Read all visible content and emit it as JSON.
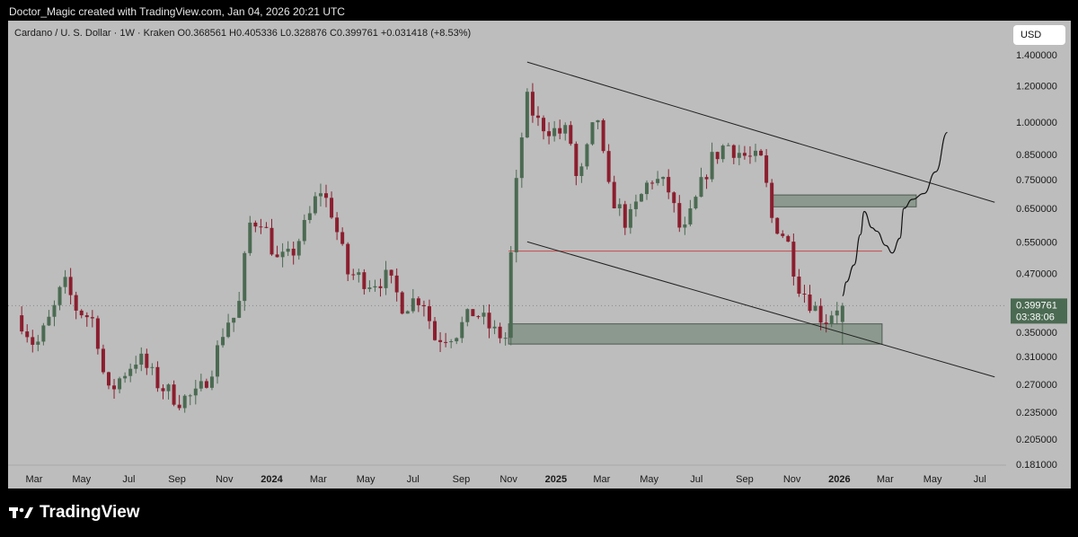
{
  "header": {
    "caption": "Doctor_Magic created with TradingView.com, Jan 04, 2026 20:21 UTC"
  },
  "legend": {
    "text": "Cardano / U. S. Dollar · 1W · Kraken  O0.368561  H0.405336  L0.328876  C0.399761  +0.031418 (+8.53%)"
  },
  "currency_button": "USD",
  "price_tag": {
    "price": "0.399761",
    "countdown": "03:38:06"
  },
  "brand": {
    "name": "TradingView"
  },
  "colors": {
    "up": "#4b6a52",
    "down": "#8b1e2e",
    "background": "#bdbdbd",
    "tag": "#4b6a52",
    "support_line": "#c84b4b",
    "zone": "#7c8e7f"
  },
  "chart_data": {
    "type": "candlestick",
    "symbol": "Cardano / U. S. Dollar",
    "interval": "1W",
    "exchange": "Kraken",
    "ohlc_last": {
      "open": 0.368561,
      "high": 0.405336,
      "low": 0.328876,
      "close": 0.399761,
      "change": 0.031418,
      "change_pct": "+8.53%"
    },
    "y_scale": "log",
    "ylim": [
      0.181,
      1.4
    ],
    "y_ticks": [
      "1.400000",
      "1.200000",
      "1.000000",
      "0.850000",
      "0.750000",
      "0.650000",
      "0.550000",
      "0.470000",
      "0.350000",
      "0.310000",
      "0.270000",
      "0.235000",
      "0.205000",
      "0.181000"
    ],
    "x_ticks": [
      {
        "label": "Mar",
        "date": "2023-03-01",
        "bold": false
      },
      {
        "label": "May",
        "date": "2023-05-01",
        "bold": false
      },
      {
        "label": "Jul",
        "date": "2023-07-01",
        "bold": false
      },
      {
        "label": "Sep",
        "date": "2023-09-01",
        "bold": false
      },
      {
        "label": "Nov",
        "date": "2023-11-01",
        "bold": false
      },
      {
        "label": "2024",
        "date": "2024-01-01",
        "bold": true
      },
      {
        "label": "Mar",
        "date": "2024-03-01",
        "bold": false
      },
      {
        "label": "May",
        "date": "2024-05-01",
        "bold": false
      },
      {
        "label": "Jul",
        "date": "2024-07-01",
        "bold": false
      },
      {
        "label": "Sep",
        "date": "2024-09-01",
        "bold": false
      },
      {
        "label": "Nov",
        "date": "2024-11-01",
        "bold": false
      },
      {
        "label": "2025",
        "date": "2025-01-01",
        "bold": true
      },
      {
        "label": "Mar",
        "date": "2025-03-01",
        "bold": false
      },
      {
        "label": "May",
        "date": "2025-05-01",
        "bold": false
      },
      {
        "label": "Jul",
        "date": "2025-07-01",
        "bold": false
      },
      {
        "label": "Sep",
        "date": "2025-09-01",
        "bold": false
      },
      {
        "label": "Nov",
        "date": "2025-11-01",
        "bold": false
      },
      {
        "label": "2026",
        "date": "2026-01-01",
        "bold": true
      },
      {
        "label": "Mar",
        "date": "2026-03-01",
        "bold": false
      },
      {
        "label": "May",
        "date": "2026-05-01",
        "bold": false
      },
      {
        "label": "Jul",
        "date": "2026-07-01",
        "bold": false
      }
    ],
    "price_path": [
      [
        "2023-02-01",
        0.385
      ],
      [
        "2023-02-20",
        0.37
      ],
      [
        "2023-03-10",
        0.325
      ],
      [
        "2023-04-01",
        0.385
      ],
      [
        "2023-04-15",
        0.45
      ],
      [
        "2023-05-01",
        0.395
      ],
      [
        "2023-05-25",
        0.37
      ],
      [
        "2023-06-10",
        0.255
      ],
      [
        "2023-07-01",
        0.285
      ],
      [
        "2023-07-20",
        0.31
      ],
      [
        "2023-08-15",
        0.27
      ],
      [
        "2023-09-10",
        0.25
      ],
      [
        "2023-10-05",
        0.255
      ],
      [
        "2023-10-25",
        0.3
      ],
      [
        "2023-11-10",
        0.37
      ],
      [
        "2023-11-25",
        0.38
      ],
      [
        "2023-12-10",
        0.6
      ],
      [
        "2023-12-25",
        0.62
      ],
      [
        "2024-01-15",
        0.5
      ],
      [
        "2024-02-01",
        0.51
      ],
      [
        "2024-02-25",
        0.62
      ],
      [
        "2024-03-10",
        0.72
      ],
      [
        "2024-03-25",
        0.64
      ],
      [
        "2024-04-15",
        0.47
      ],
      [
        "2024-05-15",
        0.45
      ],
      [
        "2024-06-05",
        0.46
      ],
      [
        "2024-06-25",
        0.4
      ],
      [
        "2024-07-20",
        0.42
      ],
      [
        "2024-08-05",
        0.34
      ],
      [
        "2024-09-01",
        0.35
      ],
      [
        "2024-09-25",
        0.39
      ],
      [
        "2024-10-20",
        0.35
      ],
      [
        "2024-11-05",
        0.34
      ],
      [
        "2024-11-12",
        0.55
      ],
      [
        "2024-11-20",
        0.8
      ],
      [
        "2024-12-01",
        1.12
      ],
      [
        "2024-12-15",
        1.0
      ],
      [
        "2025-01-10",
        0.95
      ],
      [
        "2025-01-25",
        0.95
      ],
      [
        "2025-02-05",
        0.72
      ],
      [
        "2025-03-02",
        1.05
      ],
      [
        "2025-03-15",
        0.72
      ],
      [
        "2025-04-10",
        0.6
      ],
      [
        "2025-05-10",
        0.76
      ],
      [
        "2025-06-01",
        0.72
      ],
      [
        "2025-06-20",
        0.56
      ],
      [
        "2025-07-25",
        0.82
      ],
      [
        "2025-08-15",
        0.9
      ],
      [
        "2025-09-10",
        0.84
      ],
      [
        "2025-10-01",
        0.82
      ],
      [
        "2025-10-12",
        0.62
      ],
      [
        "2025-11-01",
        0.56
      ],
      [
        "2025-11-15",
        0.45
      ],
      [
        "2025-12-05",
        0.4
      ],
      [
        "2025-12-20",
        0.37
      ],
      [
        "2026-01-04",
        0.4
      ]
    ],
    "last_price": 0.399761,
    "annotations": {
      "channel_upper": [
        [
          "2024-11-25",
          1.35
        ],
        [
          "2026-07-20",
          0.67
        ]
      ],
      "channel_lower": [
        [
          "2024-11-25",
          0.55
        ],
        [
          "2026-07-20",
          0.28
        ]
      ],
      "support_line": {
        "price": 0.525,
        "from": "2024-11-01",
        "to": "2026-02-25"
      },
      "demand_zone": {
        "from": "2024-11-01",
        "to": "2026-02-25",
        "low": 0.33,
        "high": 0.365
      },
      "supply_zone": {
        "from": "2025-10-05",
        "to": "2026-04-10",
        "low": 0.655,
        "high": 0.695
      },
      "projection_path": [
        [
          "2026-01-05",
          0.42
        ],
        [
          "2026-01-10",
          0.45
        ],
        [
          "2026-01-20",
          0.49
        ],
        [
          "2026-01-28",
          0.57
        ],
        [
          "2026-02-02",
          0.64
        ],
        [
          "2026-02-12",
          0.59
        ],
        [
          "2026-02-18",
          0.58
        ],
        [
          "2026-03-02",
          0.54
        ],
        [
          "2026-03-10",
          0.52
        ],
        [
          "2026-03-20",
          0.56
        ],
        [
          "2026-03-25",
          0.65
        ],
        [
          "2026-04-05",
          0.68
        ],
        [
          "2026-04-20",
          0.7
        ],
        [
          "2026-05-05",
          0.78
        ],
        [
          "2026-05-20",
          0.95
        ]
      ]
    }
  }
}
